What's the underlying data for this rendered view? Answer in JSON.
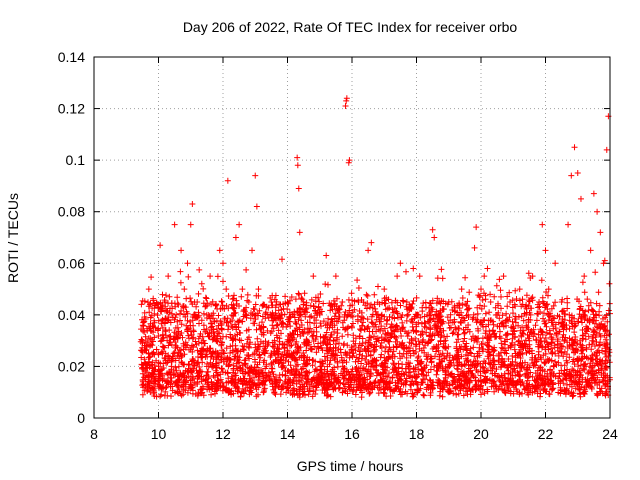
{
  "chart_data": {
    "type": "scatter",
    "title": "Day 206 of 2022, Rate Of TEC Index for receiver orbo",
    "xlabel": "GPS time / hours",
    "ylabel": "ROTI / TECUs",
    "xlim": [
      8,
      24
    ],
    "ylim": [
      0,
      0.14
    ],
    "grid": true,
    "x_ticks": [
      8,
      10,
      12,
      14,
      16,
      18,
      20,
      22,
      24
    ],
    "x_tick_labels": [
      "8",
      "10",
      "12",
      "14",
      "16",
      "18",
      "20",
      "22",
      "24"
    ],
    "y_ticks": [
      0,
      0.02,
      0.04,
      0.06,
      0.08,
      0.1,
      0.12,
      0.14
    ],
    "y_tick_labels": [
      "0",
      "0.02",
      "0.04",
      "0.06",
      "0.08",
      "0.1",
      "0.12",
      "0.14"
    ],
    "marker": "plus",
    "series": [
      {
        "name": "ROTI",
        "color": "#ff0000",
        "points": [
          [
            9.5,
            0.03
          ],
          [
            9.6,
            0.015
          ],
          [
            9.7,
            0.05
          ],
          [
            9.8,
            0.025
          ],
          [
            9.9,
            0.035
          ],
          [
            10.0,
            0.02
          ],
          [
            10.05,
            0.067
          ],
          [
            10.1,
            0.03
          ],
          [
            10.2,
            0.045
          ],
          [
            10.3,
            0.055
          ],
          [
            10.4,
            0.02
          ],
          [
            10.5,
            0.075
          ],
          [
            10.6,
            0.035
          ],
          [
            10.7,
            0.065
          ],
          [
            10.8,
            0.05
          ],
          [
            10.9,
            0.06
          ],
          [
            11.0,
            0.075
          ],
          [
            11.05,
            0.083
          ],
          [
            11.1,
            0.04
          ],
          [
            11.2,
            0.045
          ],
          [
            11.3,
            0.025
          ],
          [
            11.4,
            0.03
          ],
          [
            11.5,
            0.04
          ],
          [
            11.6,
            0.055
          ],
          [
            11.7,
            0.02
          ],
          [
            11.8,
            0.03
          ],
          [
            11.9,
            0.065
          ],
          [
            12.0,
            0.06
          ],
          [
            12.1,
            0.05
          ],
          [
            12.15,
            0.092
          ],
          [
            12.3,
            0.035
          ],
          [
            12.4,
            0.07
          ],
          [
            12.5,
            0.075
          ],
          [
            12.6,
            0.05
          ],
          [
            12.7,
            0.04
          ],
          [
            12.8,
            0.045
          ],
          [
            12.9,
            0.065
          ],
          [
            13.0,
            0.094
          ],
          [
            13.05,
            0.082
          ],
          [
            13.1,
            0.05
          ],
          [
            13.2,
            0.035
          ],
          [
            13.3,
            0.025
          ],
          [
            13.5,
            0.045
          ],
          [
            13.6,
            0.03
          ],
          [
            13.8,
            0.04
          ],
          [
            14.0,
            0.045
          ],
          [
            14.1,
            0.03
          ],
          [
            14.3,
            0.101
          ],
          [
            14.32,
            0.098
          ],
          [
            14.35,
            0.089
          ],
          [
            14.38,
            0.072
          ],
          [
            14.5,
            0.045
          ],
          [
            14.6,
            0.03
          ],
          [
            14.8,
            0.055
          ],
          [
            15.0,
            0.04
          ],
          [
            15.2,
            0.063
          ],
          [
            15.3,
            0.035
          ],
          [
            15.5,
            0.055
          ],
          [
            15.7,
            0.045
          ],
          [
            15.8,
            0.121
          ],
          [
            15.82,
            0.123
          ],
          [
            15.84,
            0.124
          ],
          [
            15.9,
            0.099
          ],
          [
            15.92,
            0.1
          ],
          [
            16.0,
            0.035
          ],
          [
            16.2,
            0.045
          ],
          [
            16.5,
            0.065
          ],
          [
            16.6,
            0.068
          ],
          [
            16.8,
            0.04
          ],
          [
            17.0,
            0.05
          ],
          [
            17.2,
            0.035
          ],
          [
            17.4,
            0.055
          ],
          [
            17.5,
            0.06
          ],
          [
            17.7,
            0.045
          ],
          [
            17.9,
            0.058
          ],
          [
            18.0,
            0.04
          ],
          [
            18.1,
            0.055
          ],
          [
            18.3,
            0.035
          ],
          [
            18.5,
            0.073
          ],
          [
            18.55,
            0.07
          ],
          [
            18.7,
            0.045
          ],
          [
            18.9,
            0.03
          ],
          [
            19.0,
            0.045
          ],
          [
            19.2,
            0.035
          ],
          [
            19.4,
            0.05
          ],
          [
            19.6,
            0.04
          ],
          [
            19.8,
            0.066
          ],
          [
            19.85,
            0.074
          ],
          [
            20.0,
            0.05
          ],
          [
            20.1,
            0.055
          ],
          [
            20.2,
            0.058
          ],
          [
            20.3,
            0.045
          ],
          [
            20.5,
            0.04
          ],
          [
            20.7,
            0.055
          ],
          [
            20.9,
            0.045
          ],
          [
            21.0,
            0.035
          ],
          [
            21.2,
            0.05
          ],
          [
            21.4,
            0.04
          ],
          [
            21.6,
            0.055
          ],
          [
            21.8,
            0.045
          ],
          [
            21.9,
            0.075
          ],
          [
            22.0,
            0.065
          ],
          [
            22.1,
            0.05
          ],
          [
            22.3,
            0.06
          ],
          [
            22.5,
            0.045
          ],
          [
            22.6,
            0.038
          ],
          [
            22.7,
            0.075
          ],
          [
            22.8,
            0.094
          ],
          [
            22.9,
            0.105
          ],
          [
            23.0,
            0.095
          ],
          [
            23.1,
            0.085
          ],
          [
            23.2,
            0.055
          ],
          [
            23.4,
            0.065
          ],
          [
            23.5,
            0.087
          ],
          [
            23.6,
            0.08
          ],
          [
            23.7,
            0.072
          ],
          [
            23.8,
            0.06
          ],
          [
            23.9,
            0.104
          ],
          [
            23.95,
            0.117
          ]
        ]
      }
    ]
  }
}
